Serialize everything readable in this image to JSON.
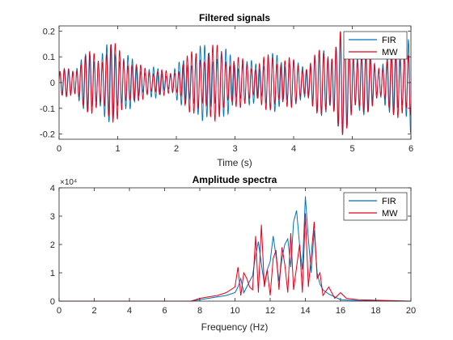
{
  "colors": {
    "fir": "#0072BD",
    "mw": "#D95319",
    "mw_line": "#E0001B",
    "axis": "#262626",
    "grid": "#dddddd"
  },
  "chart_data": [
    {
      "type": "line",
      "title": "Filtered signals",
      "xlabel": "Time (s)",
      "ylabel": "",
      "xlim": [
        0,
        6
      ],
      "ylim": [
        -0.22,
        0.22
      ],
      "xticks": [
        0,
        1,
        2,
        3,
        4,
        5,
        6
      ],
      "xtick_labels": [
        "0",
        "1",
        "2",
        "3",
        "4",
        "5",
        "6"
      ],
      "yticks": [
        -0.2,
        -0.1,
        0,
        0.1,
        0.2
      ],
      "ytick_labels": [
        "-0.2",
        "-0.1",
        "0",
        "0.1",
        "0.2"
      ],
      "legend": {
        "placement": "top-right",
        "entries": [
          "FIR",
          "MW"
        ]
      },
      "grid": false,
      "envelope_points": {
        "t": [
          0,
          0.3,
          0.6,
          0.9,
          1.1,
          1.3,
          1.6,
          1.9,
          2.1,
          2.4,
          2.6,
          2.9,
          3.2,
          3.5,
          3.8,
          4.1,
          4.5,
          4.8,
          5.1,
          5.4,
          5.7,
          6.0
        ],
        "amp": [
          0.04,
          0.08,
          0.13,
          0.15,
          0.14,
          0.07,
          0.06,
          0.04,
          0.09,
          0.14,
          0.15,
          0.12,
          0.08,
          0.1,
          0.12,
          0.07,
          0.13,
          0.2,
          0.15,
          0.08,
          0.12,
          0.2
        ]
      },
      "series": [
        {
          "name": "FIR",
          "dominant_freq_hz": 13.8
        },
        {
          "name": "MW",
          "dominant_freq_hz": 13.8
        }
      ]
    },
    {
      "type": "line",
      "title": "Amplitude spectra",
      "xlabel": "Frequency (Hz)",
      "ylabel": "",
      "exponent_label": "×10⁴",
      "xlim": [
        0,
        20
      ],
      "ylim": [
        0,
        4
      ],
      "xticks": [
        0,
        2,
        4,
        6,
        8,
        10,
        12,
        14,
        16,
        18,
        20
      ],
      "xtick_labels": [
        "0",
        "2",
        "4",
        "6",
        "8",
        "10",
        "12",
        "14",
        "16",
        "18",
        "20"
      ],
      "yticks": [
        0,
        1,
        2,
        3,
        4
      ],
      "ytick_labels": [
        "0",
        "1",
        "2",
        "3",
        "4"
      ],
      "legend": {
        "placement": "top-right",
        "entries": [
          "FIR",
          "MW"
        ]
      },
      "grid": false,
      "series": [
        {
          "name": "FIR",
          "x": [
            0,
            7.5,
            8,
            8.5,
            9,
            9.5,
            10,
            10.17,
            10.33,
            10.5,
            10.67,
            10.83,
            11,
            11.17,
            11.33,
            11.5,
            11.67,
            11.83,
            12,
            12.17,
            12.33,
            12.5,
            12.67,
            12.83,
            13,
            13.17,
            13.33,
            13.5,
            13.67,
            13.83,
            14,
            14.17,
            14.33,
            14.5,
            14.67,
            14.83,
            15,
            15.33,
            15.67,
            16,
            17,
            20
          ],
          "y": [
            0,
            0,
            0.05,
            0.1,
            0.15,
            0.2,
            0.3,
            0.5,
            0.8,
            0.3,
            0.5,
            0.7,
            0.9,
            1.6,
            2.1,
            1.3,
            0.6,
            1.1,
            1.4,
            2.3,
            1.6,
            0.7,
            1.5,
            2.0,
            2.2,
            1.2,
            2.8,
            3.2,
            2.0,
            1.1,
            3.7,
            2.2,
            1.0,
            2.5,
            1.0,
            0.6,
            0.4,
            0.25,
            0.15,
            0.05,
            0.02,
            0
          ]
        },
        {
          "name": "MW",
          "x": [
            0,
            7.5,
            8,
            8.5,
            9,
            9.5,
            10,
            10.17,
            10.33,
            10.5,
            10.67,
            10.83,
            11,
            11.17,
            11.33,
            11.5,
            11.67,
            11.83,
            12,
            12.17,
            12.33,
            12.5,
            12.67,
            12.83,
            13,
            13.17,
            13.33,
            13.5,
            13.67,
            13.83,
            14,
            14.17,
            14.33,
            14.5,
            14.67,
            14.83,
            15,
            15.33,
            15.67,
            16,
            16.33,
            17,
            20
          ],
          "y": [
            0,
            0,
            0.1,
            0.15,
            0.2,
            0.3,
            0.5,
            1.2,
            0.2,
            1.0,
            0.8,
            0.5,
            0.4,
            2.3,
            0.3,
            2.7,
            0.5,
            1.1,
            0.2,
            1.5,
            1.8,
            0.4,
            1.9,
            1.3,
            0.3,
            2.4,
            0.4,
            1.2,
            2.0,
            0.3,
            3.1,
            0.5,
            1.6,
            2.8,
            0.8,
            1.0,
            0.2,
            0.5,
            0.1,
            0.3,
            0.1,
            0.05,
            0
          ]
        }
      ]
    }
  ]
}
